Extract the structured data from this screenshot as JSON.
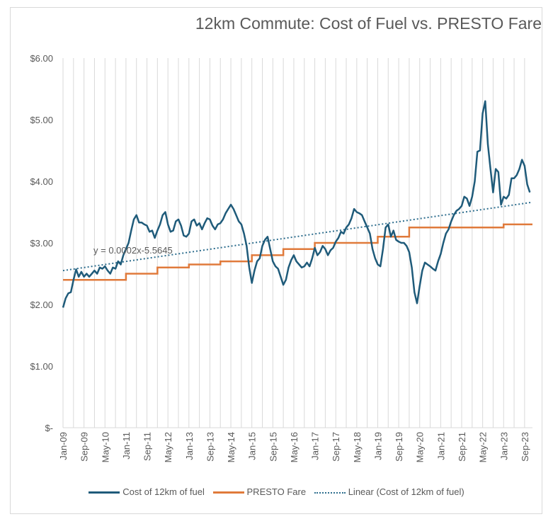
{
  "chart_data": {
    "type": "line",
    "title": "12km Commute: Cost of Fuel vs. PRESTO Fare",
    "xlabel": "",
    "ylabel": "",
    "ylim": [
      0,
      6
    ],
    "y_ticks": [
      "$-",
      "$1.00",
      "$2.00",
      "$3.00",
      "$4.00",
      "$5.00",
      "$6.00"
    ],
    "x_ticks": [
      "Jan-09",
      "Sep-09",
      "May-10",
      "Jan-11",
      "Sep-11",
      "May-12",
      "Jan-13",
      "Sep-13",
      "May-14",
      "Jan-15",
      "Sep-15",
      "May-16",
      "Jan-17",
      "Sep-17",
      "May-18",
      "Jan-19",
      "Sep-19",
      "May-20",
      "Jan-21",
      "Sep-21",
      "May-22",
      "Jan-23",
      "Sep-23"
    ],
    "x_range": [
      "Jan-09",
      "Dec-23"
    ],
    "grid": "vertical",
    "legend_position": "bottom",
    "trendline_label": "y = 0.0002x-5.5645",
    "series": [
      {
        "name": "Cost of 12km of fuel",
        "color": "#1f5b7a",
        "points": [
          [
            "2009-01",
            1.95
          ],
          [
            "2009-02",
            2.1
          ],
          [
            "2009-03",
            2.18
          ],
          [
            "2009-04",
            2.2
          ],
          [
            "2009-05",
            2.4
          ],
          [
            "2009-06",
            2.57
          ],
          [
            "2009-07",
            2.45
          ],
          [
            "2009-08",
            2.53
          ],
          [
            "2009-09",
            2.45
          ],
          [
            "2009-10",
            2.5
          ],
          [
            "2009-11",
            2.45
          ],
          [
            "2009-12",
            2.5
          ],
          [
            "2010-01",
            2.55
          ],
          [
            "2010-02",
            2.5
          ],
          [
            "2010-03",
            2.6
          ],
          [
            "2010-04",
            2.58
          ],
          [
            "2010-05",
            2.62
          ],
          [
            "2010-06",
            2.55
          ],
          [
            "2010-07",
            2.5
          ],
          [
            "2010-08",
            2.6
          ],
          [
            "2010-09",
            2.58
          ],
          [
            "2010-10",
            2.7
          ],
          [
            "2010-11",
            2.65
          ],
          [
            "2010-12",
            2.8
          ],
          [
            "2011-01",
            2.9
          ],
          [
            "2011-02",
            3.0
          ],
          [
            "2011-03",
            3.2
          ],
          [
            "2011-04",
            3.38
          ],
          [
            "2011-05",
            3.45
          ],
          [
            "2011-06",
            3.33
          ],
          [
            "2011-07",
            3.33
          ],
          [
            "2011-08",
            3.3
          ],
          [
            "2011-09",
            3.28
          ],
          [
            "2011-10",
            3.18
          ],
          [
            "2011-11",
            3.2
          ],
          [
            "2011-12",
            3.08
          ],
          [
            "2012-01",
            3.2
          ],
          [
            "2012-02",
            3.3
          ],
          [
            "2012-03",
            3.45
          ],
          [
            "2012-04",
            3.5
          ],
          [
            "2012-05",
            3.3
          ],
          [
            "2012-06",
            3.18
          ],
          [
            "2012-07",
            3.2
          ],
          [
            "2012-08",
            3.35
          ],
          [
            "2012-09",
            3.38
          ],
          [
            "2012-10",
            3.28
          ],
          [
            "2012-11",
            3.12
          ],
          [
            "2012-12",
            3.1
          ],
          [
            "2013-01",
            3.15
          ],
          [
            "2013-02",
            3.35
          ],
          [
            "2013-03",
            3.38
          ],
          [
            "2013-04",
            3.28
          ],
          [
            "2013-05",
            3.32
          ],
          [
            "2013-06",
            3.22
          ],
          [
            "2013-07",
            3.32
          ],
          [
            "2013-08",
            3.4
          ],
          [
            "2013-09",
            3.38
          ],
          [
            "2013-10",
            3.28
          ],
          [
            "2013-11",
            3.22
          ],
          [
            "2013-12",
            3.3
          ],
          [
            "2014-01",
            3.32
          ],
          [
            "2014-02",
            3.38
          ],
          [
            "2014-03",
            3.48
          ],
          [
            "2014-04",
            3.55
          ],
          [
            "2014-05",
            3.62
          ],
          [
            "2014-06",
            3.55
          ],
          [
            "2014-07",
            3.45
          ],
          [
            "2014-08",
            3.35
          ],
          [
            "2014-09",
            3.3
          ],
          [
            "2014-10",
            3.15
          ],
          [
            "2014-11",
            2.95
          ],
          [
            "2014-12",
            2.6
          ],
          [
            "2015-01",
            2.35
          ],
          [
            "2015-02",
            2.55
          ],
          [
            "2015-03",
            2.7
          ],
          [
            "2015-04",
            2.75
          ],
          [
            "2015-05",
            2.95
          ],
          [
            "2015-06",
            3.05
          ],
          [
            "2015-07",
            3.1
          ],
          [
            "2015-08",
            2.9
          ],
          [
            "2015-09",
            2.7
          ],
          [
            "2015-10",
            2.62
          ],
          [
            "2015-11",
            2.58
          ],
          [
            "2015-12",
            2.45
          ],
          [
            "2016-01",
            2.32
          ],
          [
            "2016-02",
            2.4
          ],
          [
            "2016-03",
            2.6
          ],
          [
            "2016-04",
            2.72
          ],
          [
            "2016-05",
            2.8
          ],
          [
            "2016-06",
            2.7
          ],
          [
            "2016-07",
            2.65
          ],
          [
            "2016-08",
            2.6
          ],
          [
            "2016-09",
            2.62
          ],
          [
            "2016-10",
            2.68
          ],
          [
            "2016-11",
            2.62
          ],
          [
            "2016-12",
            2.75
          ],
          [
            "2017-01",
            2.92
          ],
          [
            "2017-02",
            2.8
          ],
          [
            "2017-03",
            2.85
          ],
          [
            "2017-04",
            2.95
          ],
          [
            "2017-05",
            2.9
          ],
          [
            "2017-06",
            2.8
          ],
          [
            "2017-07",
            2.88
          ],
          [
            "2017-08",
            2.92
          ],
          [
            "2017-09",
            3.02
          ],
          [
            "2017-10",
            3.08
          ],
          [
            "2017-11",
            3.18
          ],
          [
            "2017-12",
            3.15
          ],
          [
            "2018-01",
            3.25
          ],
          [
            "2018-02",
            3.3
          ],
          [
            "2018-03",
            3.4
          ],
          [
            "2018-04",
            3.55
          ],
          [
            "2018-05",
            3.5
          ],
          [
            "2018-06",
            3.48
          ],
          [
            "2018-07",
            3.45
          ],
          [
            "2018-08",
            3.35
          ],
          [
            "2018-09",
            3.25
          ],
          [
            "2018-10",
            3.15
          ],
          [
            "2018-11",
            2.9
          ],
          [
            "2018-12",
            2.75
          ],
          [
            "2019-01",
            2.65
          ],
          [
            "2019-02",
            2.62
          ],
          [
            "2019-03",
            2.9
          ],
          [
            "2019-04",
            3.25
          ],
          [
            "2019-05",
            3.3
          ],
          [
            "2019-06",
            3.1
          ],
          [
            "2019-07",
            3.2
          ],
          [
            "2019-08",
            3.05
          ],
          [
            "2019-09",
            3.02
          ],
          [
            "2019-10",
            3.0
          ],
          [
            "2019-11",
            3.0
          ],
          [
            "2019-12",
            2.95
          ],
          [
            "2020-01",
            2.85
          ],
          [
            "2020-02",
            2.6
          ],
          [
            "2020-03",
            2.2
          ],
          [
            "2020-04",
            2.02
          ],
          [
            "2020-05",
            2.3
          ],
          [
            "2020-06",
            2.55
          ],
          [
            "2020-07",
            2.68
          ],
          [
            "2020-08",
            2.65
          ],
          [
            "2020-09",
            2.62
          ],
          [
            "2020-10",
            2.58
          ],
          [
            "2020-11",
            2.55
          ],
          [
            "2020-12",
            2.7
          ],
          [
            "2021-01",
            2.82
          ],
          [
            "2021-02",
            3.0
          ],
          [
            "2021-03",
            3.15
          ],
          [
            "2021-04",
            3.22
          ],
          [
            "2021-05",
            3.35
          ],
          [
            "2021-06",
            3.45
          ],
          [
            "2021-07",
            3.52
          ],
          [
            "2021-08",
            3.55
          ],
          [
            "2021-09",
            3.6
          ],
          [
            "2021-10",
            3.75
          ],
          [
            "2021-11",
            3.72
          ],
          [
            "2021-12",
            3.6
          ],
          [
            "2022-01",
            3.75
          ],
          [
            "2022-02",
            4.0
          ],
          [
            "2022-03",
            4.48
          ],
          [
            "2022-04",
            4.5
          ],
          [
            "2022-05",
            5.1
          ],
          [
            "2022-06",
            5.3
          ],
          [
            "2022-07",
            4.6
          ],
          [
            "2022-08",
            4.2
          ],
          [
            "2022-09",
            3.82
          ],
          [
            "2022-10",
            4.2
          ],
          [
            "2022-11",
            4.15
          ],
          [
            "2022-12",
            3.62
          ],
          [
            "2023-01",
            3.75
          ],
          [
            "2023-02",
            3.72
          ],
          [
            "2023-03",
            3.78
          ],
          [
            "2023-04",
            4.05
          ],
          [
            "2023-05",
            4.05
          ],
          [
            "2023-06",
            4.1
          ],
          [
            "2023-07",
            4.2
          ],
          [
            "2023-08",
            4.35
          ],
          [
            "2023-09",
            4.25
          ],
          [
            "2023-10",
            3.95
          ],
          [
            "2023-11",
            3.82
          ]
        ]
      },
      {
        "name": "PRESTO Fare",
        "color": "#e07a3b",
        "steps": [
          [
            "2009-01",
            2.4
          ],
          [
            "2011-01",
            2.5
          ],
          [
            "2012-01",
            2.6
          ],
          [
            "2013-01",
            2.65
          ],
          [
            "2014-01",
            2.7
          ],
          [
            "2015-01",
            2.8
          ],
          [
            "2016-01",
            2.9
          ],
          [
            "2017-01",
            3.0
          ],
          [
            "2019-01",
            3.1
          ],
          [
            "2020-01",
            3.25
          ],
          [
            "2023-01",
            3.3
          ]
        ],
        "end": "2023-12"
      },
      {
        "name": "Linear (Cost of 12km of fuel)",
        "color": "#2e6e8e",
        "style": "dotted",
        "start": [
          "2009-01",
          2.55
        ],
        "end": [
          "2023-12",
          3.66
        ]
      }
    ]
  }
}
